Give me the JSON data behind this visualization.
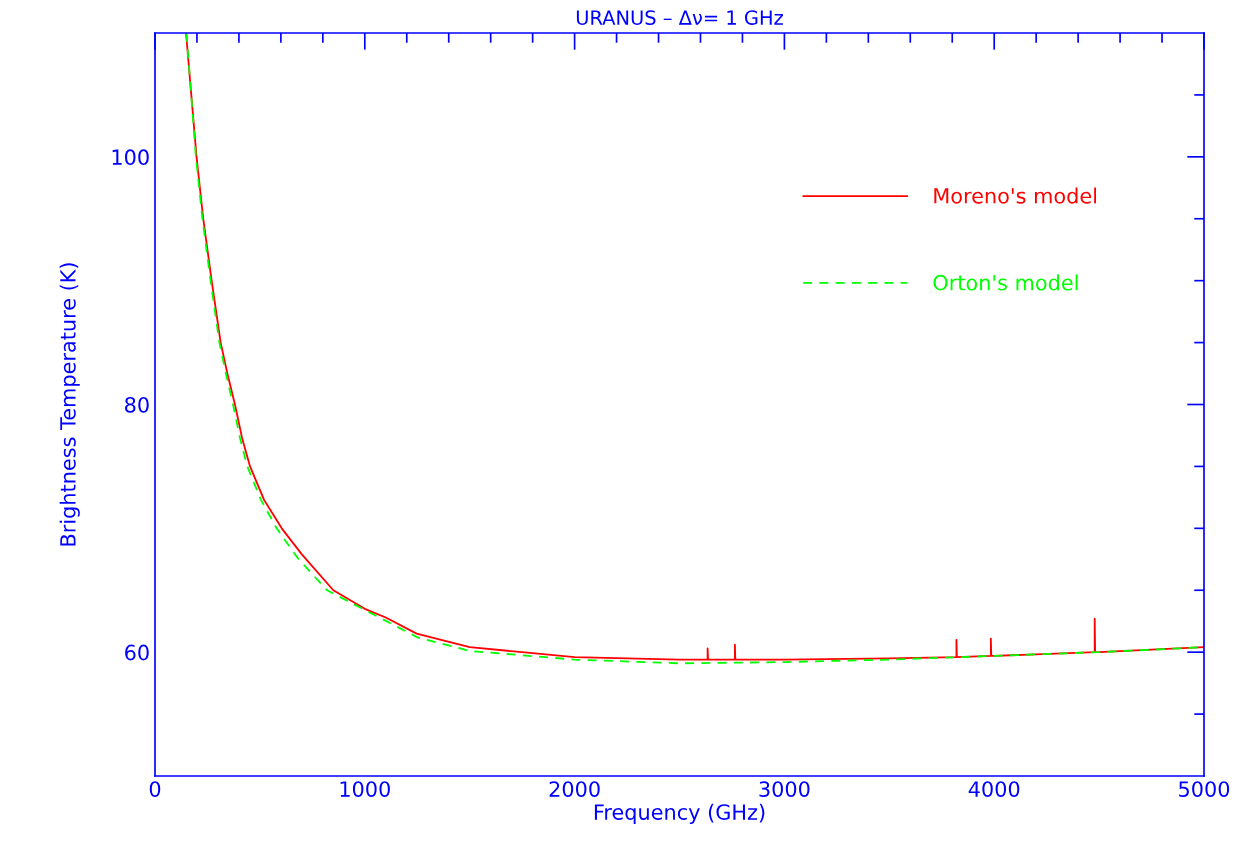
{
  "chart_data": {
    "type": "line",
    "title": "URANUS – Δν= 1 GHz",
    "xlabel": "Frequency (GHz)",
    "ylabel": "Brightness Temperature (K)",
    "xlim": [
      0,
      5000
    ],
    "ylim": [
      50,
      110
    ],
    "xticks": [
      0,
      {
        "value": 200,
        "label": null
      },
      {
        "value": 400,
        "label": null
      },
      {
        "value": 600,
        "label": null
      },
      {
        "value": 800,
        "label": null
      },
      1000,
      {
        "value": 1200,
        "label": null
      },
      {
        "value": 1400,
        "label": null
      },
      {
        "value": 1600,
        "label": null
      },
      {
        "value": 1800,
        "label": null
      },
      2000,
      {
        "value": 2200,
        "label": null
      },
      {
        "value": 2400,
        "label": null
      },
      {
        "value": 2600,
        "label": null
      },
      {
        "value": 2800,
        "label": null
      },
      3000,
      {
        "value": 3200,
        "label": null
      },
      {
        "value": 3400,
        "label": null
      },
      {
        "value": 3600,
        "label": null
      },
      {
        "value": 3800,
        "label": null
      },
      4000,
      {
        "value": 4200,
        "label": null
      },
      {
        "value": 4400,
        "label": null
      },
      {
        "value": 4600,
        "label": null
      },
      {
        "value": 4800,
        "label": null
      },
      5000
    ],
    "yticks": [
      {
        "value": 55,
        "label": null
      },
      60,
      {
        "value": 65,
        "label": null
      },
      {
        "value": 70,
        "label": null
      },
      {
        "value": 75,
        "label": null
      },
      80,
      {
        "value": 85,
        "label": null
      },
      {
        "value": 90,
        "label": null
      },
      {
        "value": 95,
        "label": null
      },
      100,
      {
        "value": 105,
        "label": null
      }
    ],
    "grid": false,
    "legend": "right",
    "marker": "none",
    "series": [
      {
        "name": "Moreno's model",
        "color": "#ff0000",
        "line_style": "solid",
        "x": [
          148,
          198,
          230,
          270,
          313,
          345,
          381,
          415,
          453,
          520,
          604,
          700,
          850,
          1000,
          1100,
          1247,
          1500,
          1750,
          2000,
          2500,
          2634,
          2634,
          2636,
          2764,
          2764,
          2766,
          3000,
          3500,
          3820,
          3820,
          3822,
          3984,
          3984,
          3986,
          4000,
          4479,
          4479,
          4481,
          4500,
          5000
        ],
        "values": [
          110,
          100,
          95,
          90,
          85,
          82.5,
          80,
          77.3,
          75,
          72.3,
          70,
          67.9,
          65,
          63.5,
          62.8,
          61.5,
          60.4,
          60.0,
          59.6,
          59.4,
          59.4,
          60.3,
          59.4,
          59.4,
          60.6,
          59.4,
          59.4,
          59.5,
          59.6,
          61.0,
          59.6,
          59.7,
          61.1,
          59.7,
          59.7,
          60.0,
          62.7,
          60.0,
          60.0,
          60.4
        ]
      },
      {
        "name": "Orton's model",
        "color": "#00ff00",
        "line_style": "dashed",
        "x": [
          150,
          195,
          226,
          265,
          307,
          338,
          372,
          405,
          440,
          505,
          580,
          680,
          820,
          1250,
          1500,
          2000,
          2500,
          3000,
          3500,
          4000,
          4500,
          5000
        ],
        "values": [
          110,
          100,
          95,
          90,
          85,
          82.5,
          80,
          77.3,
          75,
          72.3,
          70,
          67.6,
          65,
          61.2,
          60.1,
          59.4,
          59.1,
          59.2,
          59.4,
          59.7,
          60.0,
          60.4
        ]
      }
    ]
  }
}
